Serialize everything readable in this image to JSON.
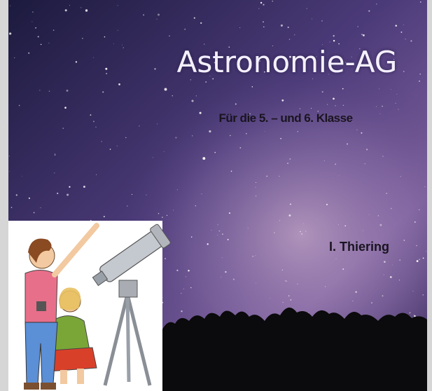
{
  "title": "Astronomie-AG",
  "subtitle": "Für die  5. – und 6. Klasse",
  "author": "I. Thiering"
}
